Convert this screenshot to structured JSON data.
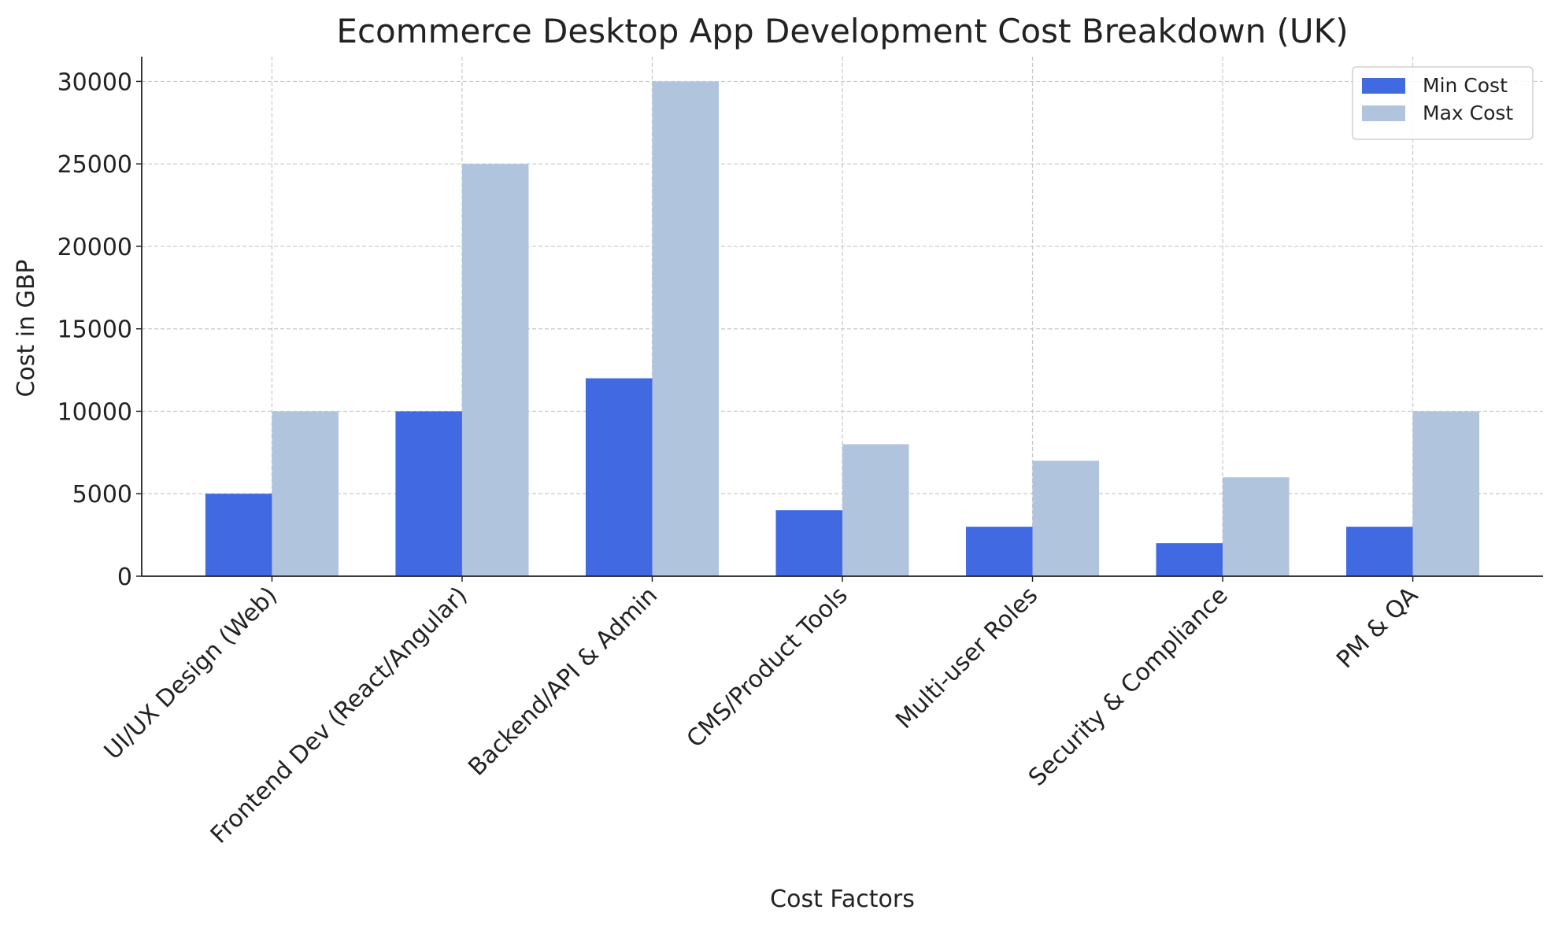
{
  "chart_data": {
    "type": "bar",
    "title": "Ecommerce Desktop App Development Cost Breakdown (UK)",
    "xlabel": "Cost Factors",
    "ylabel": "Cost in GBP",
    "categories": [
      "UI/UX Design (Web)",
      "Frontend Dev (React/Angular)",
      "Backend/API & Admin",
      "CMS/Product Tools",
      "Multi-user Roles",
      "Security & Compliance",
      "PM & QA"
    ],
    "series": [
      {
        "name": "Min Cost",
        "color": "#4169e1",
        "values": [
          5000,
          10000,
          12000,
          4000,
          3000,
          2000,
          3000
        ]
      },
      {
        "name": "Max Cost",
        "color": "#b0c4de",
        "values": [
          10000,
          25000,
          30000,
          8000,
          7000,
          6000,
          10000
        ]
      }
    ],
    "ylim": [
      0,
      31500
    ],
    "yticks": [
      0,
      5000,
      10000,
      15000,
      20000,
      25000,
      30000
    ],
    "grid": true,
    "legend_position": "top-right"
  }
}
